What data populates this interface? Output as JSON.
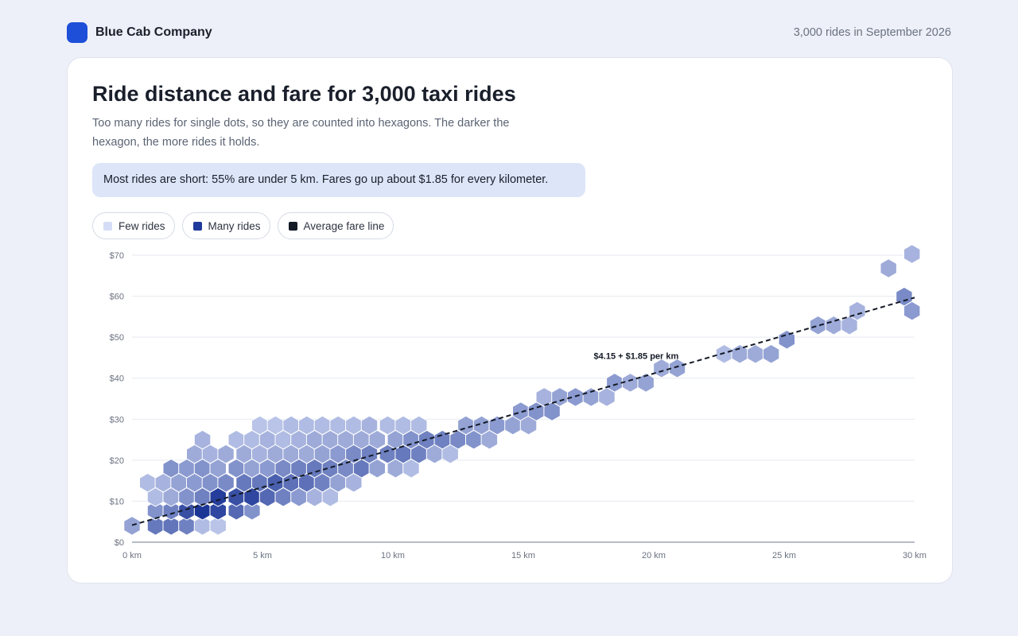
{
  "header": {
    "brand": "Blue Cab Company",
    "meta": "3,000 rides in September 2026"
  },
  "card": {
    "title": "Ride distance and fare for 3,000 taxi rides",
    "subtitle": "Too many rides for single dots, so they are counted into hexagons. The darker the hexagon, the more rides it holds.",
    "callout": "Most rides are short: 55% are under 5 km. Fares go up about $1.85 for every kilometer."
  },
  "legend": [
    {
      "label": "Few rides",
      "color": "#d5ddf6"
    },
    {
      "label": "Many rides",
      "color": "#1e3a9a"
    },
    {
      "label": "Average fare line",
      "color": "#141a26"
    }
  ],
  "chart_data": {
    "type": "hexbin",
    "xlim": [
      0,
      30
    ],
    "ylim": [
      0,
      70
    ],
    "x_ticks": [
      0,
      5,
      10,
      15,
      20,
      25,
      30
    ],
    "x_tick_labels": [
      "0 km",
      "5 km",
      "10 km",
      "15 km",
      "20 km",
      "25 km",
      "30 km"
    ],
    "y_ticks": [
      0,
      10,
      20,
      30,
      40,
      50,
      60,
      70
    ],
    "y_tick_labels": [
      "$0",
      "$10",
      "$20",
      "$30",
      "$40",
      "$50",
      "$60",
      "$70"
    ],
    "grid": true,
    "trend_line": {
      "intercept": 4.15,
      "slope": 1.85,
      "label": "$4.15 + $1.85 per km"
    },
    "hex_grid": {
      "col_step_km": 0.627,
      "row_step_usd": 3.49
    },
    "bins": [
      [
        0.0,
        4.0,
        0.35
      ],
      [
        0.6,
        14.5,
        0.2
      ],
      [
        0.9,
        4.0,
        0.6
      ],
      [
        0.9,
        7.7,
        0.45
      ],
      [
        0.9,
        11.0,
        0.2
      ],
      [
        1.2,
        14.5,
        0.25
      ],
      [
        1.5,
        4.0,
        0.62
      ],
      [
        1.5,
        7.7,
        0.55
      ],
      [
        1.5,
        11.0,
        0.3
      ],
      [
        1.5,
        18.0,
        0.45
      ],
      [
        1.8,
        14.5,
        0.35
      ],
      [
        2.1,
        4.0,
        0.55
      ],
      [
        2.1,
        7.7,
        0.85
      ],
      [
        2.1,
        11.0,
        0.45
      ],
      [
        2.1,
        18.0,
        0.4
      ],
      [
        2.4,
        14.5,
        0.4
      ],
      [
        2.4,
        21.5,
        0.3
      ],
      [
        2.7,
        4.0,
        0.2
      ],
      [
        2.7,
        7.7,
        1.0
      ],
      [
        2.7,
        11.0,
        0.55
      ],
      [
        2.7,
        18.0,
        0.45
      ],
      [
        2.7,
        25.0,
        0.25
      ],
      [
        3.0,
        14.5,
        0.45
      ],
      [
        3.0,
        21.5,
        0.25
      ],
      [
        3.3,
        4.0,
        0.15
      ],
      [
        3.3,
        7.7,
        0.9
      ],
      [
        3.3,
        11.0,
        0.95
      ],
      [
        3.3,
        18.0,
        0.35
      ],
      [
        3.6,
        14.5,
        0.5
      ],
      [
        3.6,
        21.5,
        0.3
      ],
      [
        4.0,
        7.7,
        0.7
      ],
      [
        4.0,
        11.0,
        0.85
      ],
      [
        4.0,
        18.0,
        0.45
      ],
      [
        4.0,
        25.0,
        0.2
      ],
      [
        4.3,
        14.5,
        0.6
      ],
      [
        4.3,
        21.5,
        0.3
      ],
      [
        4.6,
        7.7,
        0.45
      ],
      [
        4.6,
        11.0,
        0.9
      ],
      [
        4.6,
        18.0,
        0.35
      ],
      [
        4.6,
        25.0,
        0.2
      ],
      [
        4.9,
        14.5,
        0.6
      ],
      [
        4.9,
        21.5,
        0.25
      ],
      [
        4.9,
        28.5,
        0.15
      ],
      [
        5.2,
        11.0,
        0.7
      ],
      [
        5.2,
        18.0,
        0.4
      ],
      [
        5.2,
        25.0,
        0.25
      ],
      [
        5.5,
        14.5,
        0.75
      ],
      [
        5.5,
        21.5,
        0.3
      ],
      [
        5.5,
        28.5,
        0.15
      ],
      [
        5.8,
        11.0,
        0.55
      ],
      [
        5.8,
        18.0,
        0.5
      ],
      [
        5.8,
        25.0,
        0.2
      ],
      [
        6.1,
        14.5,
        0.65
      ],
      [
        6.1,
        21.5,
        0.3
      ],
      [
        6.1,
        28.5,
        0.2
      ],
      [
        6.4,
        11.0,
        0.4
      ],
      [
        6.4,
        18.0,
        0.55
      ],
      [
        6.4,
        25.0,
        0.25
      ],
      [
        6.7,
        14.5,
        0.65
      ],
      [
        6.7,
        21.5,
        0.3
      ],
      [
        6.7,
        28.5,
        0.2
      ],
      [
        7.0,
        11.0,
        0.25
      ],
      [
        7.0,
        18.0,
        0.6
      ],
      [
        7.0,
        25.0,
        0.3
      ],
      [
        7.3,
        14.5,
        0.55
      ],
      [
        7.3,
        21.5,
        0.35
      ],
      [
        7.3,
        28.5,
        0.2
      ],
      [
        7.6,
        11.0,
        0.2
      ],
      [
        7.6,
        18.0,
        0.55
      ],
      [
        7.6,
        25.0,
        0.3
      ],
      [
        7.9,
        14.5,
        0.35
      ],
      [
        7.9,
        21.5,
        0.4
      ],
      [
        7.9,
        28.5,
        0.2
      ],
      [
        8.2,
        18.0,
        0.5
      ],
      [
        8.2,
        25.0,
        0.3
      ],
      [
        8.5,
        14.5,
        0.25
      ],
      [
        8.5,
        21.5,
        0.5
      ],
      [
        8.5,
        28.5,
        0.2
      ],
      [
        8.8,
        18.0,
        0.6
      ],
      [
        8.8,
        25.0,
        0.3
      ],
      [
        9.1,
        21.5,
        0.55
      ],
      [
        9.1,
        28.5,
        0.25
      ],
      [
        9.4,
        18.0,
        0.35
      ],
      [
        9.4,
        25.0,
        0.3
      ],
      [
        9.8,
        21.5,
        0.55
      ],
      [
        9.8,
        28.5,
        0.2
      ],
      [
        10.1,
        18.0,
        0.3
      ],
      [
        10.1,
        25.0,
        0.35
      ],
      [
        10.4,
        21.5,
        0.6
      ],
      [
        10.4,
        28.5,
        0.2
      ],
      [
        10.7,
        18.0,
        0.2
      ],
      [
        10.7,
        25.0,
        0.45
      ],
      [
        11.0,
        21.5,
        0.55
      ],
      [
        11.0,
        28.5,
        0.2
      ],
      [
        11.3,
        25.0,
        0.55
      ],
      [
        11.6,
        21.5,
        0.3
      ],
      [
        11.9,
        25.0,
        0.55
      ],
      [
        12.2,
        21.5,
        0.2
      ],
      [
        12.5,
        25.0,
        0.5
      ],
      [
        12.8,
        28.5,
        0.35
      ],
      [
        13.1,
        25.0,
        0.45
      ],
      [
        13.7,
        25.0,
        0.3
      ],
      [
        13.4,
        28.5,
        0.35
      ],
      [
        14.0,
        28.5,
        0.4
      ],
      [
        14.6,
        28.5,
        0.35
      ],
      [
        14.9,
        31.9,
        0.4
      ],
      [
        15.2,
        28.5,
        0.3
      ],
      [
        15.5,
        31.9,
        0.45
      ],
      [
        15.8,
        35.4,
        0.25
      ],
      [
        16.1,
        31.9,
        0.45
      ],
      [
        16.4,
        35.4,
        0.35
      ],
      [
        17.0,
        35.4,
        0.4
      ],
      [
        17.6,
        35.4,
        0.35
      ],
      [
        18.2,
        35.4,
        0.25
      ],
      [
        18.5,
        38.9,
        0.4
      ],
      [
        19.1,
        38.9,
        0.3
      ],
      [
        19.7,
        38.9,
        0.35
      ],
      [
        20.3,
        42.4,
        0.3
      ],
      [
        20.9,
        42.4,
        0.35
      ],
      [
        22.7,
        45.9,
        0.2
      ],
      [
        23.3,
        45.9,
        0.3
      ],
      [
        23.9,
        45.9,
        0.3
      ],
      [
        24.5,
        45.9,
        0.35
      ],
      [
        25.1,
        49.4,
        0.45
      ],
      [
        26.3,
        52.9,
        0.35
      ],
      [
        26.9,
        52.9,
        0.3
      ],
      [
        27.5,
        52.9,
        0.25
      ],
      [
        27.8,
        56.4,
        0.25
      ],
      [
        29.6,
        59.9,
        0.5
      ],
      [
        29.9,
        56.4,
        0.4
      ],
      [
        29.0,
        66.8,
        0.3
      ],
      [
        29.9,
        70.3,
        0.25
      ]
    ]
  }
}
